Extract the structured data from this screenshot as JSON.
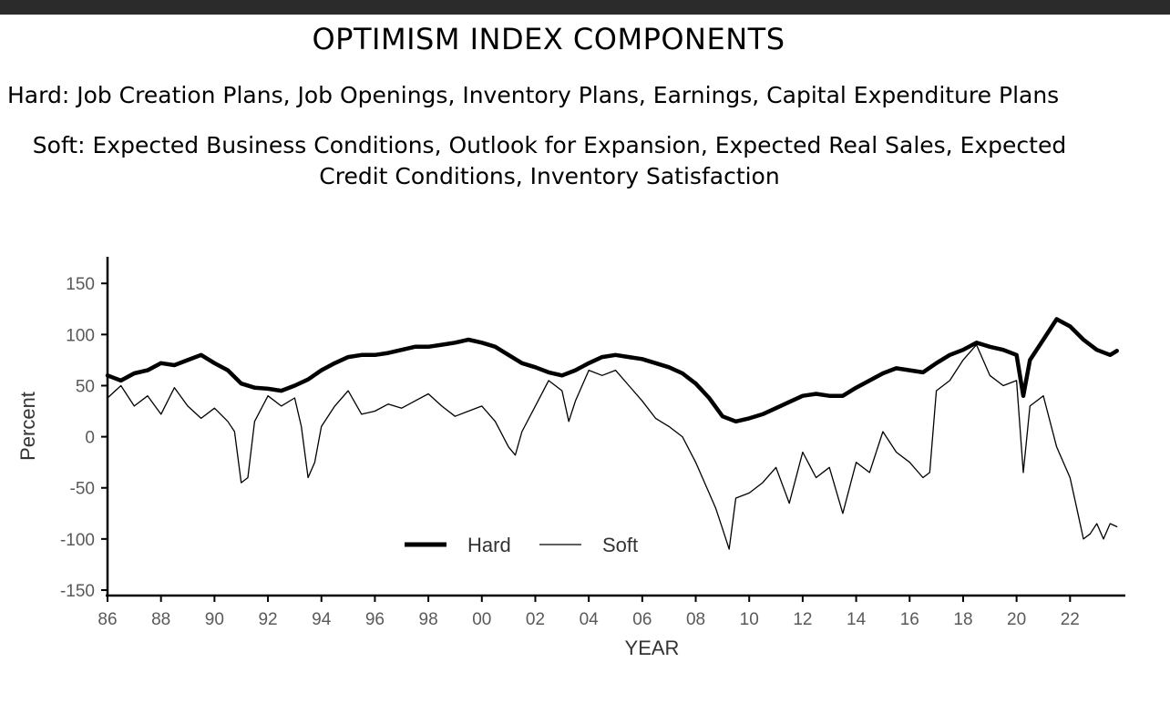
{
  "header": {
    "title": "OPTIMISM INDEX COMPONENTS",
    "hard_line": "Hard: Job Creation Plans, Job Openings, Inventory Plans, Earnings, Capital Expenditure Plans",
    "soft_line": "Soft: Expected Business Conditions, Outlook for Expansion, Expected Real Sales, Expected Credit Conditions, Inventory Satisfaction"
  },
  "colors": {
    "background": "#ffffff",
    "topbar": "#2b2b2b",
    "series": "#000000"
  },
  "chart_data": {
    "type": "line",
    "title": "OPTIMISM INDEX COMPONENTS",
    "xlabel": "YEAR",
    "ylabel": "Percent",
    "xlim": [
      1986,
      2024
    ],
    "ylim": [
      -150,
      160
    ],
    "yticks": [
      150,
      100,
      50,
      0,
      -50,
      -100,
      -150
    ],
    "xticks": [
      1986,
      1988,
      1990,
      1992,
      1994,
      1996,
      1998,
      2000,
      2002,
      2004,
      2006,
      2008,
      2010,
      2012,
      2014,
      2016,
      2018,
      2020,
      2022
    ],
    "xtick_labels": [
      "86",
      "88",
      "90",
      "92",
      "94",
      "96",
      "98",
      "00",
      "02",
      "04",
      "06",
      "08",
      "10",
      "12",
      "14",
      "16",
      "18",
      "20",
      "22"
    ],
    "grid": false,
    "legend": "bottom-center",
    "series": [
      {
        "name": "Hard",
        "style": "thick",
        "points": [
          [
            1986.0,
            60
          ],
          [
            1986.5,
            55
          ],
          [
            1987.0,
            62
          ],
          [
            1987.5,
            65
          ],
          [
            1988.0,
            72
          ],
          [
            1988.5,
            70
          ],
          [
            1989.0,
            75
          ],
          [
            1989.5,
            80
          ],
          [
            1990.0,
            72
          ],
          [
            1990.5,
            65
          ],
          [
            1991.0,
            52
          ],
          [
            1991.5,
            48
          ],
          [
            1992.0,
            47
          ],
          [
            1992.5,
            45
          ],
          [
            1993.0,
            50
          ],
          [
            1993.5,
            56
          ],
          [
            1994.0,
            65
          ],
          [
            1994.5,
            72
          ],
          [
            1995.0,
            78
          ],
          [
            1995.5,
            80
          ],
          [
            1996.0,
            80
          ],
          [
            1996.5,
            82
          ],
          [
            1997.0,
            85
          ],
          [
            1997.5,
            88
          ],
          [
            1998.0,
            88
          ],
          [
            1998.5,
            90
          ],
          [
            1999.0,
            92
          ],
          [
            1999.5,
            95
          ],
          [
            2000.0,
            92
          ],
          [
            2000.5,
            88
          ],
          [
            2001.0,
            80
          ],
          [
            2001.5,
            72
          ],
          [
            2002.0,
            68
          ],
          [
            2002.5,
            63
          ],
          [
            2003.0,
            60
          ],
          [
            2003.5,
            65
          ],
          [
            2004.0,
            72
          ],
          [
            2004.5,
            78
          ],
          [
            2005.0,
            80
          ],
          [
            2005.5,
            78
          ],
          [
            2006.0,
            76
          ],
          [
            2006.5,
            72
          ],
          [
            2007.0,
            68
          ],
          [
            2007.5,
            62
          ],
          [
            2008.0,
            52
          ],
          [
            2008.5,
            38
          ],
          [
            2009.0,
            20
          ],
          [
            2009.5,
            15
          ],
          [
            2010.0,
            18
          ],
          [
            2010.5,
            22
          ],
          [
            2011.0,
            28
          ],
          [
            2011.5,
            34
          ],
          [
            2012.0,
            40
          ],
          [
            2012.5,
            42
          ],
          [
            2013.0,
            40
          ],
          [
            2013.5,
            40
          ],
          [
            2014.0,
            48
          ],
          [
            2014.5,
            55
          ],
          [
            2015.0,
            62
          ],
          [
            2015.5,
            67
          ],
          [
            2016.0,
            65
          ],
          [
            2016.5,
            63
          ],
          [
            2017.0,
            72
          ],
          [
            2017.5,
            80
          ],
          [
            2018.0,
            85
          ],
          [
            2018.5,
            92
          ],
          [
            2019.0,
            88
          ],
          [
            2019.5,
            85
          ],
          [
            2020.0,
            80
          ],
          [
            2020.25,
            40
          ],
          [
            2020.5,
            75
          ],
          [
            2021.0,
            95
          ],
          [
            2021.5,
            115
          ],
          [
            2022.0,
            108
          ],
          [
            2022.5,
            95
          ],
          [
            2023.0,
            85
          ],
          [
            2023.5,
            80
          ],
          [
            2023.75,
            84
          ]
        ]
      },
      {
        "name": "Soft",
        "style": "thin",
        "points": [
          [
            1986.0,
            38
          ],
          [
            1986.5,
            50
          ],
          [
            1987.0,
            30
          ],
          [
            1987.5,
            40
          ],
          [
            1988.0,
            22
          ],
          [
            1988.5,
            48
          ],
          [
            1989.0,
            30
          ],
          [
            1989.5,
            18
          ],
          [
            1990.0,
            28
          ],
          [
            1990.5,
            15
          ],
          [
            1990.75,
            5
          ],
          [
            1991.0,
            -45
          ],
          [
            1991.25,
            -40
          ],
          [
            1991.5,
            15
          ],
          [
            1992.0,
            40
          ],
          [
            1992.5,
            30
          ],
          [
            1993.0,
            38
          ],
          [
            1993.25,
            10
          ],
          [
            1993.5,
            -40
          ],
          [
            1993.75,
            -25
          ],
          [
            1994.0,
            10
          ],
          [
            1994.5,
            30
          ],
          [
            1995.0,
            45
          ],
          [
            1995.5,
            22
          ],
          [
            1996.0,
            25
          ],
          [
            1996.5,
            32
          ],
          [
            1997.0,
            28
          ],
          [
            1997.5,
            35
          ],
          [
            1998.0,
            42
          ],
          [
            1998.5,
            30
          ],
          [
            1999.0,
            20
          ],
          [
            1999.5,
            25
          ],
          [
            2000.0,
            30
          ],
          [
            2000.5,
            15
          ],
          [
            2001.0,
            -10
          ],
          [
            2001.25,
            -18
          ],
          [
            2001.5,
            5
          ],
          [
            2002.0,
            30
          ],
          [
            2002.5,
            55
          ],
          [
            2003.0,
            45
          ],
          [
            2003.25,
            15
          ],
          [
            2003.5,
            35
          ],
          [
            2004.0,
            65
          ],
          [
            2004.5,
            60
          ],
          [
            2005.0,
            65
          ],
          [
            2005.5,
            50
          ],
          [
            2006.0,
            35
          ],
          [
            2006.5,
            18
          ],
          [
            2007.0,
            10
          ],
          [
            2007.5,
            0
          ],
          [
            2008.0,
            -25
          ],
          [
            2008.5,
            -55
          ],
          [
            2008.75,
            -70
          ],
          [
            2009.0,
            -90
          ],
          [
            2009.25,
            -110
          ],
          [
            2009.5,
            -60
          ],
          [
            2010.0,
            -55
          ],
          [
            2010.5,
            -45
          ],
          [
            2011.0,
            -30
          ],
          [
            2011.5,
            -65
          ],
          [
            2012.0,
            -15
          ],
          [
            2012.5,
            -40
          ],
          [
            2013.0,
            -30
          ],
          [
            2013.5,
            -75
          ],
          [
            2014.0,
            -25
          ],
          [
            2014.5,
            -35
          ],
          [
            2015.0,
            5
          ],
          [
            2015.5,
            -15
          ],
          [
            2016.0,
            -25
          ],
          [
            2016.5,
            -40
          ],
          [
            2016.75,
            -35
          ],
          [
            2017.0,
            45
          ],
          [
            2017.5,
            55
          ],
          [
            2018.0,
            75
          ],
          [
            2018.5,
            90
          ],
          [
            2019.0,
            60
          ],
          [
            2019.5,
            50
          ],
          [
            2020.0,
            55
          ],
          [
            2020.25,
            -35
          ],
          [
            2020.5,
            30
          ],
          [
            2021.0,
            40
          ],
          [
            2021.5,
            -10
          ],
          [
            2022.0,
            -40
          ],
          [
            2022.25,
            -70
          ],
          [
            2022.5,
            -100
          ],
          [
            2022.75,
            -95
          ],
          [
            2023.0,
            -85
          ],
          [
            2023.25,
            -100
          ],
          [
            2023.5,
            -85
          ],
          [
            2023.75,
            -88
          ]
        ]
      }
    ]
  }
}
